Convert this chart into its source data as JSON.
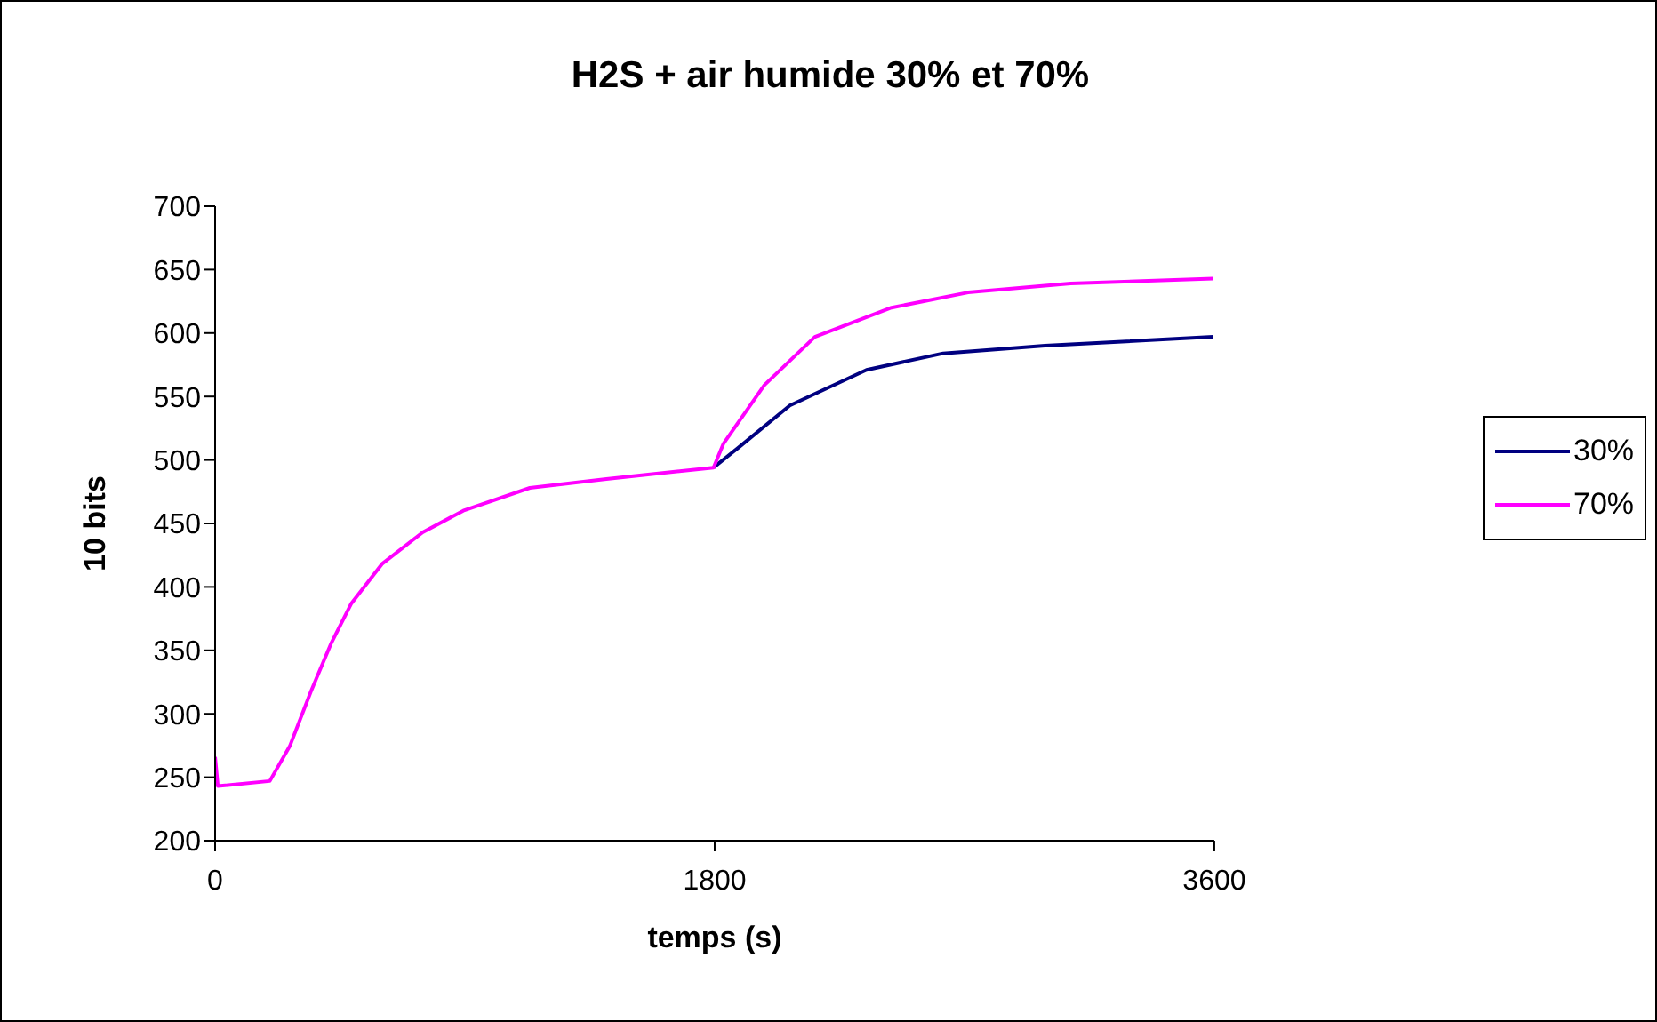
{
  "chart_data": {
    "type": "line",
    "title": "H2S + air humide 30% et 70%",
    "xlabel": "temps (s)",
    "ylabel": "10 bits",
    "xlim": [
      0,
      3600
    ],
    "xticks": [
      0,
      1800,
      3600
    ],
    "ylim": [
      200,
      700
    ],
    "yticks": [
      200,
      250,
      300,
      350,
      400,
      450,
      500,
      550,
      600,
      650,
      700
    ],
    "legend": "right",
    "marker": "none",
    "line_style": "solid",
    "series": [
      {
        "name": "30%",
        "color": "#000080",
        "x": [
          1796,
          1887,
          2071,
          2347,
          2623,
          2990,
          3596
        ],
        "values": [
          494,
          510,
          543,
          571,
          584,
          590,
          597
        ]
      },
      {
        "name": "70%",
        "color": "#ff00ff",
        "x": [
          0,
          10,
          197,
          270,
          344,
          417,
          491,
          601,
          748,
          894,
          1134,
          1410,
          1796,
          1832,
          1979,
          2161,
          2437,
          2713,
          3082,
          3596
        ],
        "values": [
          266,
          243,
          247,
          275,
          317,
          355,
          387,
          418,
          443,
          460,
          478,
          485,
          494,
          513,
          559,
          597,
          620,
          632,
          639,
          643
        ]
      }
    ]
  }
}
